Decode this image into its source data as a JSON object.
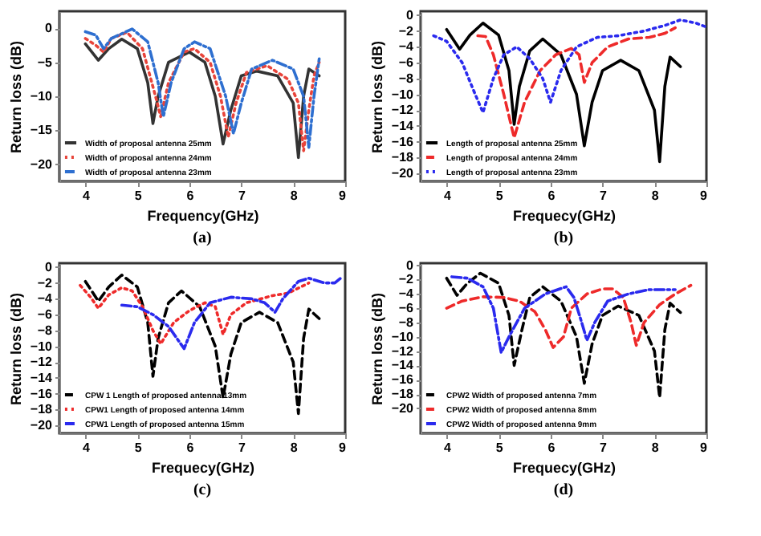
{
  "chart_data": [
    {
      "type": "line",
      "title": "(a)",
      "xlabel": "Frequency(GHz)",
      "ylabel": "Return loss (dB)",
      "xlim": [
        3.5,
        9
      ],
      "xticks": [
        4,
        5,
        6,
        7,
        8,
        9
      ],
      "ylim": [
        -22.5,
        2.5
      ],
      "yticks": [
        0,
        -5,
        -10,
        -15,
        -20
      ],
      "grid": false,
      "legend": "bottom left",
      "series": [
        {
          "name": "Width of proposal antenna 25mm",
          "color": "#333333",
          "line_style": "solid",
          "x": [
            4,
            4.25,
            4.45,
            4.7,
            5,
            5.2,
            5.3,
            5.4,
            5.6,
            6,
            6.3,
            6.5,
            6.65,
            6.8,
            7,
            7.3,
            7.7,
            8,
            8.1,
            8.2,
            8.3,
            8.5
          ],
          "values": [
            -2.3,
            -4.7,
            -3,
            -1.6,
            -3,
            -8,
            -14,
            -10,
            -5,
            -3.5,
            -5,
            -10,
            -17,
            -12,
            -7,
            -6.3,
            -7,
            -11,
            -19,
            -10,
            -6,
            -7
          ]
        },
        {
          "name": "Width of proposal antenna 24mm",
          "color": "#e8443a",
          "line_style": "dotted",
          "x": [
            4,
            4.2,
            4.35,
            4.5,
            4.8,
            5.1,
            5.35,
            5.45,
            5.6,
            5.9,
            6.1,
            6.4,
            6.6,
            6.75,
            6.9,
            7.1,
            7.5,
            7.9,
            8.1,
            8.2,
            8.3,
            8.4,
            8.5
          ],
          "values": [
            -1.5,
            -2.5,
            -3.5,
            -1.5,
            -0.6,
            -3,
            -10,
            -13,
            -8,
            -3.5,
            -3,
            -5,
            -10,
            -16,
            -11,
            -6.5,
            -5.5,
            -7.5,
            -11,
            -18,
            -12,
            -7,
            -5
          ]
        },
        {
          "name": "Width of proposal antenna 23mm",
          "color": "#2e6fd0",
          "line_style": "dashdot",
          "x": [
            4,
            4.2,
            4.35,
            4.5,
            4.9,
            5.2,
            5.4,
            5.5,
            5.65,
            5.9,
            6.1,
            6.4,
            6.7,
            6.85,
            7,
            7.2,
            7.6,
            8,
            8.2,
            8.3,
            8.4,
            8.5
          ],
          "values": [
            -0.5,
            -1,
            -3,
            -1.5,
            -0.1,
            -2,
            -8,
            -13,
            -8,
            -3,
            -2,
            -3,
            -10,
            -15.5,
            -11,
            -6,
            -4.7,
            -6,
            -10,
            -17.5,
            -10,
            -4.5
          ]
        }
      ]
    },
    {
      "type": "line",
      "title": "(b)",
      "xlabel": "Frequecy(GHz)",
      "ylabel": "Return loss (dB)",
      "xlim": [
        3.5,
        9
      ],
      "xticks": [
        4,
        5,
        6,
        7,
        8,
        9
      ],
      "ylim": [
        -21,
        0.5
      ],
      "yticks": [
        0,
        -2,
        -4,
        -6,
        -8,
        -10,
        -12,
        -14,
        -16,
        -18,
        -20
      ],
      "grid": false,
      "legend": "bottom left",
      "series": [
        {
          "name": "Length of proposal antenna 25mm",
          "color": "#000000",
          "line_style": "solid",
          "x": [
            4,
            4.25,
            4.45,
            4.7,
            5,
            5.2,
            5.3,
            5.4,
            5.6,
            5.85,
            6.2,
            6.5,
            6.65,
            6.8,
            7,
            7.35,
            7.7,
            8,
            8.1,
            8.2,
            8.3,
            8.5
          ],
          "values": [
            -1.8,
            -4.3,
            -2.5,
            -1,
            -2.5,
            -7,
            -13.8,
            -9,
            -4.5,
            -3,
            -5,
            -10,
            -16.5,
            -11,
            -7,
            -5.7,
            -7,
            -12,
            -18.5,
            -9,
            -5.3,
            -6.5
          ]
        },
        {
          "name": "Length of proposal antenna 24mm",
          "color": "#ee2a2a",
          "line_style": "dashed",
          "x": [
            4.6,
            4.75,
            4.9,
            5.1,
            5.3,
            5.5,
            5.8,
            6.1,
            6.4,
            6.55,
            6.65,
            6.8,
            7.1,
            7.5,
            7.9,
            8.2,
            8.4
          ],
          "values": [
            -2.6,
            -2.7,
            -5,
            -10,
            -15.5,
            -11,
            -7,
            -5,
            -4.2,
            -5,
            -8.5,
            -6,
            -4,
            -3,
            -2.8,
            -2.3,
            -1.6
          ]
        },
        {
          "name": "Length of proposal antenna 23mm",
          "color": "#2a2aee",
          "line_style": "dotted",
          "x": [
            3.75,
            4,
            4.3,
            4.55,
            4.7,
            4.9,
            5.1,
            5.35,
            5.6,
            5.85,
            6,
            6.2,
            6.5,
            6.9,
            7.3,
            7.8,
            8.2,
            8.5,
            8.8,
            9
          ],
          "values": [
            -2.6,
            -3.3,
            -6,
            -10,
            -12.3,
            -8,
            -5,
            -4,
            -5.5,
            -8,
            -11,
            -7,
            -4,
            -2.8,
            -2.6,
            -2,
            -1.3,
            -0.6,
            -1,
            -1.5
          ]
        }
      ]
    },
    {
      "type": "line",
      "title": "(c)",
      "xlabel": "Frequecy(GHz)",
      "ylabel": "Return loss (dB)",
      "xlim": [
        3.5,
        9
      ],
      "xticks": [
        4,
        5,
        6,
        7,
        8,
        9
      ],
      "ylim": [
        -21,
        0.5
      ],
      "yticks": [
        0,
        -2,
        -4,
        -6,
        -8,
        -10,
        -12,
        -14,
        -16,
        -18,
        -20
      ],
      "grid": false,
      "legend": "bottom left",
      "series": [
        {
          "name": "CPW 1 Length of proposed antenna 13mm",
          "color": "#000000",
          "line_style": "dashed",
          "x": [
            4,
            4.25,
            4.45,
            4.7,
            5,
            5.2,
            5.3,
            5.4,
            5.6,
            5.85,
            6.2,
            6.5,
            6.65,
            6.8,
            7,
            7.35,
            7.7,
            8,
            8.1,
            8.2,
            8.3,
            8.5
          ],
          "values": [
            -1.8,
            -4.3,
            -2.5,
            -1,
            -2.5,
            -7,
            -13.8,
            -9,
            -4.5,
            -3,
            -5,
            -10,
            -16.5,
            -11,
            -7,
            -5.7,
            -7,
            -12,
            -18.5,
            -9,
            -5.3,
            -6.5
          ]
        },
        {
          "name": "CPW1 Length of proposed antenna 14mm",
          "color": "#ee2a2a",
          "line_style": "dotted",
          "x": [
            3.9,
            4.1,
            4.25,
            4.45,
            4.7,
            4.9,
            5.1,
            5.3,
            5.45,
            5.7,
            6,
            6.3,
            6.5,
            6.65,
            6.8,
            7.1,
            7.6,
            7.9,
            8.3
          ],
          "values": [
            -2.3,
            -3.8,
            -5.2,
            -3.5,
            -2.6,
            -3,
            -5,
            -8,
            -9.7,
            -7,
            -5.5,
            -4.5,
            -5,
            -8.5,
            -6,
            -4.5,
            -3.6,
            -3.3,
            -2
          ]
        },
        {
          "name": "CPW1 Length of proposed antenna 15mm",
          "color": "#2a2aee",
          "line_style": "dashdot",
          "x": [
            4.7,
            5,
            5.3,
            5.6,
            5.9,
            6.1,
            6.4,
            6.8,
            7.2,
            7.45,
            7.65,
            7.8,
            8.1,
            8.3,
            8.6,
            8.8,
            8.95
          ],
          "values": [
            -4.8,
            -5,
            -6,
            -7.5,
            -10.3,
            -7,
            -4.5,
            -3.8,
            -4,
            -4.5,
            -5.7,
            -4,
            -1.8,
            -1.4,
            -2,
            -2,
            -1.2
          ]
        }
      ]
    },
    {
      "type": "line",
      "title": "(d)",
      "xlabel": "Frequecy(GHz)",
      "ylabel": "Return loss (dB)",
      "xlim": [
        3.5,
        9
      ],
      "xticks": [
        4,
        5,
        6,
        7,
        8,
        9
      ],
      "ylim": [
        -23.5,
        0.3
      ],
      "yticks": [
        0,
        -2,
        -4,
        -6,
        -8,
        -10,
        -12,
        -14,
        -16,
        -18,
        -20
      ],
      "grid": false,
      "legend": "bottom left",
      "series": [
        {
          "name": "CPW2 Width of proposed antenna 7mm",
          "color": "#000000",
          "line_style": "dashed",
          "x": [
            4,
            4.2,
            4.4,
            4.65,
            5,
            5.2,
            5.3,
            5.45,
            5.6,
            5.85,
            6.2,
            6.5,
            6.65,
            6.8,
            7,
            7.3,
            7.7,
            8,
            8.1,
            8.2,
            8.3,
            8.5
          ],
          "values": [
            -1.8,
            -4.2,
            -2.5,
            -1.1,
            -2.5,
            -7,
            -14,
            -9,
            -4.5,
            -3,
            -5,
            -10,
            -16.5,
            -11,
            -7,
            -5.7,
            -7,
            -12,
            -18.5,
            -9,
            -5.3,
            -6.6
          ]
        },
        {
          "name": "CPW2 Width of proposed antenna 8mm",
          "color": "#ee2a2a",
          "line_style": "dashed",
          "x": [
            4,
            4.3,
            4.7,
            5.1,
            5.4,
            5.7,
            5.9,
            6.05,
            6.25,
            6.4,
            6.7,
            7,
            7.2,
            7.4,
            7.55,
            7.65,
            7.8,
            8.1,
            8.4,
            8.7
          ],
          "values": [
            -6,
            -5,
            -4.4,
            -4.5,
            -5,
            -6.5,
            -9,
            -11.5,
            -10,
            -6,
            -4,
            -3.3,
            -3.3,
            -4.5,
            -8,
            -11.2,
            -8,
            -5.5,
            -4,
            -2.8
          ]
        },
        {
          "name": "CPW2 Width of proposed antenna 9mm",
          "color": "#2a2aee",
          "line_style": "dashdot",
          "x": [
            4.1,
            4.4,
            4.7,
            4.9,
            5.05,
            5.2,
            5.5,
            5.9,
            6.3,
            6.45,
            6.6,
            6.7,
            6.85,
            7.1,
            7.5,
            7.9,
            8.4
          ],
          "values": [
            -1.6,
            -1.8,
            -3,
            -6,
            -12.2,
            -10,
            -6,
            -4,
            -3,
            -4.5,
            -8,
            -10.5,
            -8,
            -5,
            -4,
            -3.4,
            -3.4
          ]
        }
      ]
    }
  ]
}
